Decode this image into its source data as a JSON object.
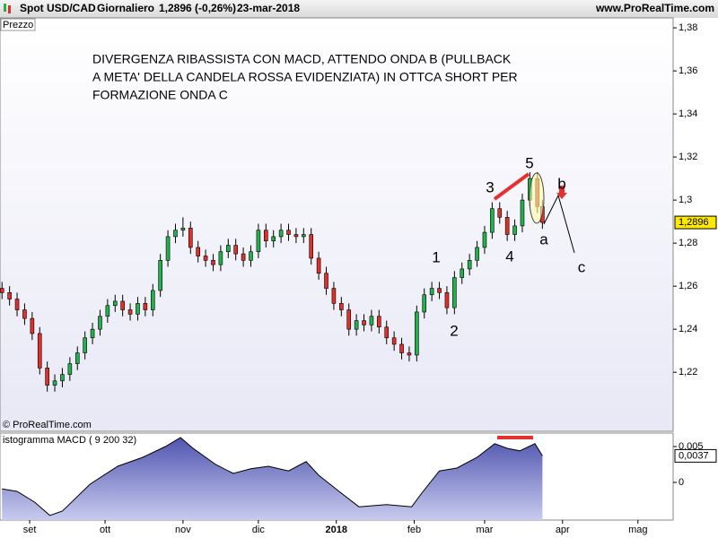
{
  "header": {
    "symbol": "Spot USD/CAD",
    "period": "Giornaliero",
    "quote": "1,2896 (-0,26%)",
    "date": "23-mar-2018",
    "site": "www.ProRealTime.com"
  },
  "chart_data": [
    {
      "type": "candlestick",
      "panel_label": "Prezzo",
      "copyright": "© ProRealTime.com",
      "annotations": [
        "DIVERGENZA RIBASSISTA CON MACD, ATTENDO ONDA B (PULLBACK",
        "A META' DELLA CANDELA ROSSA EVIDENZIATA) IN OTTCA SHORT PER",
        "FORMAZIONE ONDA C"
      ],
      "wave_labels": [
        "1",
        "2",
        "3",
        "4",
        "5",
        "a",
        "b",
        "c"
      ],
      "up_color": "#22b14c",
      "down_color": "#e0302a",
      "xlim": [
        -11.8,
        256
      ],
      "ylim": [
        1.193,
        1.3846
      ],
      "yticks": [
        {
          "value": 1.38,
          "label": "1,38"
        },
        {
          "value": 1.36,
          "label": "1,36"
        },
        {
          "value": 1.34,
          "label": "1,34"
        },
        {
          "value": 1.32,
          "label": "1,32"
        },
        {
          "value": 1.3,
          "label": "1,3"
        },
        {
          "value": 1.28,
          "label": "1,28"
        },
        {
          "value": 1.26,
          "label": "1,26"
        },
        {
          "value": 1.24,
          "label": "1,24"
        },
        {
          "value": 1.22,
          "label": "1,22"
        }
      ],
      "last": {
        "value": 1.2896,
        "label": "1,2896"
      },
      "x": [
        -11,
        -8,
        -5,
        -2,
        1,
        4,
        7,
        10,
        13,
        16,
        19,
        22,
        25,
        28,
        31,
        34,
        37,
        40,
        43,
        46,
        49,
        52,
        55,
        58,
        61,
        64,
        67,
        70,
        73,
        76,
        79,
        82,
        85,
        88,
        91,
        94,
        97,
        100,
        103,
        106,
        109,
        112,
        115,
        118,
        121,
        124,
        127,
        130,
        133,
        136,
        139,
        142,
        145,
        148,
        151,
        154,
        157,
        160,
        163,
        166,
        169,
        172,
        175,
        178,
        181,
        184,
        187,
        190,
        193,
        196,
        199,
        202,
        204
      ],
      "open": [
        1.259,
        1.257,
        1.254,
        1.249,
        1.245,
        1.238,
        1.222,
        1.214,
        1.216,
        1.219,
        1.224,
        1.229,
        1.236,
        1.24,
        1.246,
        1.251,
        1.253,
        1.249,
        1.247,
        1.252,
        1.249,
        1.258,
        1.272,
        1.283,
        1.286,
        1.287,
        1.278,
        1.274,
        1.272,
        1.27,
        1.276,
        1.279,
        1.275,
        1.272,
        1.276,
        1.286,
        1.281,
        1.283,
        1.286,
        1.284,
        1.283,
        1.284,
        1.273,
        1.266,
        1.259,
        1.252,
        1.249,
        1.24,
        1.244,
        1.242,
        1.246,
        1.241,
        1.236,
        1.233,
        1.229,
        1.228,
        1.248,
        1.256,
        1.259,
        1.257,
        1.25,
        1.264,
        1.268,
        1.272,
        1.278,
        1.285,
        1.296,
        1.292,
        1.284,
        1.288,
        1.3,
        1.31,
        1.297
      ],
      "high": [
        1.262,
        1.26,
        1.257,
        1.252,
        1.248,
        1.241,
        1.225,
        1.219,
        1.222,
        1.227,
        1.232,
        1.239,
        1.243,
        1.249,
        1.254,
        1.256,
        1.256,
        1.252,
        1.255,
        1.255,
        1.261,
        1.275,
        1.286,
        1.289,
        1.292,
        1.29,
        1.281,
        1.277,
        1.275,
        1.279,
        1.282,
        1.282,
        1.278,
        1.279,
        1.289,
        1.289,
        1.286,
        1.289,
        1.289,
        1.287,
        1.287,
        1.287,
        1.276,
        1.269,
        1.262,
        1.255,
        1.252,
        1.247,
        1.247,
        1.249,
        1.249,
        1.244,
        1.239,
        1.236,
        1.232,
        1.251,
        1.259,
        1.262,
        1.262,
        1.26,
        1.267,
        1.271,
        1.275,
        1.281,
        1.288,
        1.299,
        1.299,
        1.295,
        1.291,
        1.303,
        1.313,
        1.313,
        1.3
      ],
      "low": [
        1.254,
        1.251,
        1.246,
        1.242,
        1.235,
        1.219,
        1.211,
        1.211,
        1.213,
        1.216,
        1.221,
        1.226,
        1.233,
        1.237,
        1.243,
        1.248,
        1.246,
        1.244,
        1.244,
        1.246,
        1.246,
        1.255,
        1.269,
        1.28,
        1.283,
        1.275,
        1.271,
        1.269,
        1.267,
        1.267,
        1.273,
        1.272,
        1.269,
        1.269,
        1.273,
        1.278,
        1.278,
        1.28,
        1.281,
        1.28,
        1.28,
        1.27,
        1.263,
        1.256,
        1.249,
        1.246,
        1.237,
        1.237,
        1.239,
        1.239,
        1.238,
        1.233,
        1.23,
        1.226,
        1.225,
        1.225,
        1.245,
        1.253,
        1.254,
        1.247,
        1.247,
        1.261,
        1.265,
        1.269,
        1.275,
        1.282,
        1.289,
        1.281,
        1.281,
        1.285,
        1.297,
        1.294,
        1.2866
      ],
      "close": [
        1.257,
        1.254,
        1.249,
        1.245,
        1.238,
        1.222,
        1.214,
        1.216,
        1.219,
        1.224,
        1.229,
        1.236,
        1.24,
        1.246,
        1.251,
        1.253,
        1.249,
        1.247,
        1.252,
        1.249,
        1.258,
        1.272,
        1.283,
        1.286,
        1.287,
        1.278,
        1.274,
        1.272,
        1.27,
        1.276,
        1.279,
        1.275,
        1.272,
        1.276,
        1.286,
        1.281,
        1.283,
        1.286,
        1.284,
        1.283,
        1.284,
        1.273,
        1.266,
        1.259,
        1.252,
        1.249,
        1.24,
        1.244,
        1.242,
        1.246,
        1.241,
        1.236,
        1.233,
        1.229,
        1.228,
        1.248,
        1.256,
        1.259,
        1.257,
        1.25,
        1.264,
        1.268,
        1.272,
        1.278,
        1.285,
        1.296,
        1.292,
        1.284,
        1.288,
        1.3,
        1.31,
        1.297,
        1.2896
      ]
    },
    {
      "type": "area",
      "panel_label": "istogramma MACD ( 9 200 32)",
      "color": "#5a5fb0",
      "xlim": [
        -11.8,
        256
      ],
      "ylim": [
        -0.00525,
        0.00675
      ],
      "yticks": [
        {
          "value": 0.005,
          "label": "0,005"
        },
        0
      ],
      "xticks": [
        {
          "value": 0,
          "label": "set"
        },
        {
          "value": 30,
          "label": "ott"
        },
        {
          "value": 61,
          "label": "nov"
        },
        {
          "value": 91,
          "label": "dic"
        },
        {
          "value": 122,
          "label": "2018"
        },
        {
          "value": 153,
          "label": "feb"
        },
        {
          "value": 181,
          "label": "mar"
        },
        {
          "value": 212,
          "label": "apr"
        },
        {
          "value": 242,
          "label": "mag"
        }
      ],
      "last": {
        "value": 0.0037,
        "label": "0,0037"
      },
      "x": [
        -11,
        -5,
        2,
        8,
        13,
        24,
        35,
        45,
        54,
        60,
        65,
        74,
        81,
        88,
        95,
        103,
        110,
        115,
        124,
        131,
        142,
        152,
        156,
        163,
        170,
        178,
        185,
        190,
        195,
        201,
        204
      ],
      "values": [
        -0.0009,
        -0.00125,
        -0.00275,
        -0.0046,
        -0.004,
        -0.00025,
        0.00225,
        0.0035,
        0.005,
        0.00625,
        0.00475,
        0.0025,
        0.00125,
        0.0019,
        0.00225,
        0.0016,
        0.0029,
        0.001,
        -0.0015,
        -0.0034,
        -0.0031,
        -0.0034,
        -0.0015,
        0.0016,
        0.002,
        0.0035,
        0.0054,
        0.00475,
        0.0044,
        0.0054,
        0.0037
      ]
    }
  ]
}
